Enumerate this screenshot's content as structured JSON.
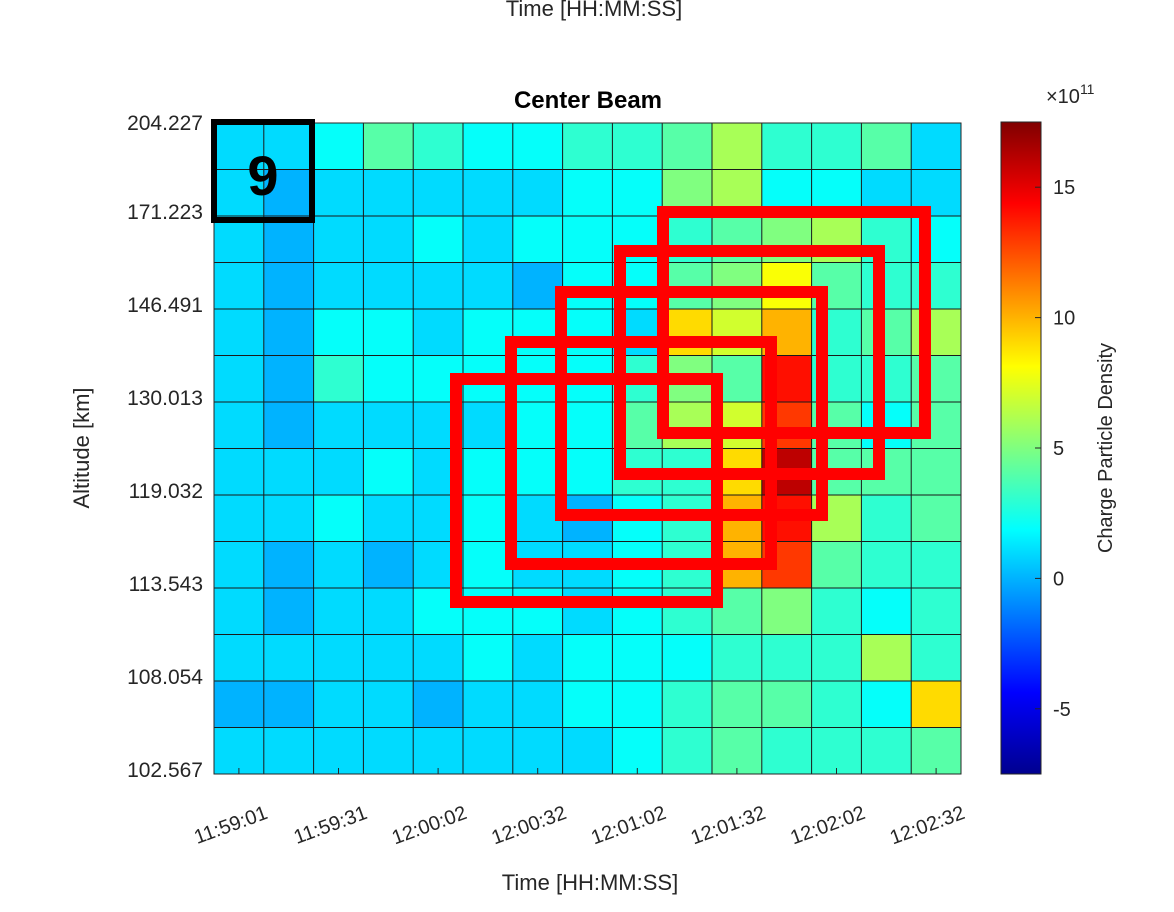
{
  "figure": {
    "top_label": "Time [HH:MM:SS]",
    "panel_label": "9"
  },
  "chart_data": {
    "type": "heatmap",
    "title": "Center Beam",
    "xlabel": "Time [HH:MM:SS]",
    "ylabel": "Altitude [km]",
    "x_ticks": [
      "11:59:01",
      "11:59:31",
      "12:00:02",
      "12:00:32",
      "12:01:02",
      "12:01:32",
      "12:02:02",
      "12:02:32"
    ],
    "y_ticks": [
      "204.227",
      "171.223",
      "146.491",
      "130.013",
      "119.032",
      "113.543",
      "108.054",
      "102.567"
    ],
    "colorbar": {
      "label": "Charge Particle Density",
      "exponent_label": "×10",
      "exponent_power": "11",
      "min": -7.5,
      "max": 17.5,
      "ticks": [
        -5,
        0,
        5,
        10,
        15
      ],
      "tick_labels": [
        "-5",
        "0",
        "5",
        "10",
        "15"
      ]
    },
    "grid": true,
    "z_matrix_rows_top_to_bottom": [
      [
        1,
        1,
        2,
        4,
        3,
        2,
        2,
        3,
        3,
        4,
        6,
        3,
        3,
        4,
        1
      ],
      [
        1,
        0,
        1,
        1,
        1,
        1,
        1,
        2,
        2,
        5,
        6,
        2,
        2,
        1,
        1
      ],
      [
        1,
        0,
        1,
        1,
        2,
        1,
        2,
        2,
        2,
        3,
        4,
        5,
        6,
        3,
        2
      ],
      [
        1,
        0,
        1,
        1,
        1,
        1,
        0,
        2,
        2,
        4,
        5,
        8,
        4,
        3,
        3
      ],
      [
        1,
        0,
        2,
        2,
        1,
        2,
        2,
        2,
        1,
        9,
        7,
        10,
        3,
        4,
        6
      ],
      [
        1,
        0,
        3,
        2,
        2,
        2,
        2,
        2,
        3,
        5,
        4,
        14,
        3,
        3,
        4
      ],
      [
        1,
        0,
        1,
        1,
        1,
        1,
        2,
        2,
        4,
        6,
        7,
        13,
        4,
        2,
        4
      ],
      [
        1,
        1,
        1,
        2,
        1,
        2,
        2,
        2,
        3,
        3,
        9,
        16,
        4,
        4,
        4
      ],
      [
        1,
        1,
        2,
        1,
        1,
        2,
        1,
        0,
        2,
        3,
        10,
        14,
        6,
        3,
        4
      ],
      [
        1,
        0,
        1,
        0,
        1,
        2,
        1,
        1,
        2,
        3,
        10,
        13,
        4,
        3,
        3
      ],
      [
        1,
        0,
        1,
        1,
        2,
        2,
        2,
        1,
        2,
        3,
        4,
        5,
        3,
        2,
        3
      ],
      [
        1,
        1,
        1,
        1,
        1,
        2,
        1,
        2,
        2,
        2,
        3,
        3,
        3,
        6,
        3
      ],
      [
        0,
        0,
        1,
        1,
        0,
        1,
        1,
        2,
        2,
        3,
        4,
        4,
        3,
        2,
        9
      ],
      [
        1,
        1,
        1,
        1,
        1,
        1,
        1,
        1,
        2,
        3,
        4,
        3,
        3,
        3,
        4
      ]
    ],
    "color_scale": "jet"
  }
}
